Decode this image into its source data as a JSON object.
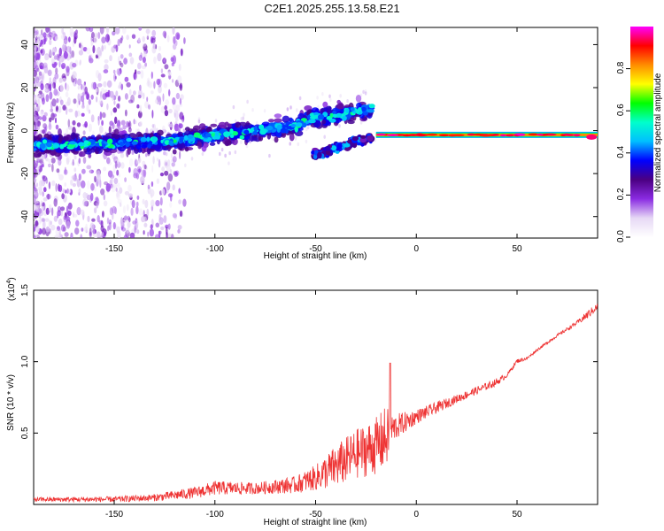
{
  "page": {
    "title": "C2E1.2025.255.13.58.E21"
  },
  "chart_data": [
    {
      "type": "heatmap",
      "title": "C2E1.2025.255.13.58.E21",
      "xlabel": "Height of straight line (km)",
      "ylabel": "Frequency (Hz)",
      "xlim": [
        -190,
        90
      ],
      "ylim": [
        -50,
        48
      ],
      "x_ticks": [
        -150,
        -100,
        -50,
        0,
        50
      ],
      "y_ticks": [
        -40,
        -20,
        0,
        20,
        40
      ],
      "x_tick_labels": [
        "-150",
        "-100",
        "-50",
        "0",
        "50"
      ],
      "y_tick_labels": [
        "-40",
        "-20",
        "0",
        "20",
        "40"
      ],
      "colorbar": {
        "label": "Normalized spectral amplitude",
        "range": [
          0.0,
          1.0
        ],
        "ticks": [
          0.0,
          0.2,
          0.4,
          0.6,
          0.8
        ],
        "tick_labels": [
          "0.0",
          "0.2",
          "0.4",
          "0.6",
          "0.8"
        ],
        "colormap": [
          "#ffffff",
          "#e6d8f5",
          "#8a2be2",
          "#4b0082",
          "#0000ff",
          "#00bfff",
          "#00ffcc",
          "#00ff00",
          "#ffff00",
          "#ff8c00",
          "#ff0000",
          "#ff00ff"
        ]
      },
      "ridge": {
        "description": "dominant Doppler ridge",
        "x": [
          -190,
          -150,
          -130,
          -120,
          -100,
          -80,
          -60,
          -52,
          -40,
          -30,
          -22,
          -20,
          -10,
          0,
          20,
          40,
          60,
          80,
          90
        ],
        "y": [
          -7,
          -6,
          -5,
          -5,
          -2,
          0,
          2,
          6,
          7,
          9,
          10,
          -2,
          -2,
          -2,
          -2,
          -2,
          -2,
          -2,
          -3
        ]
      },
      "secondary_ridge": {
        "x": [
          -52,
          -40,
          -30,
          -22
        ],
        "y": [
          -12,
          -8,
          -5,
          -3
        ]
      },
      "strong_band": {
        "x_range": [
          -20,
          90
        ],
        "frequency_hz": -2
      }
    },
    {
      "type": "line",
      "xlabel": "Height of straight line (km)",
      "ylabel": "SNR (10 * v/v)",
      "multiplier_label": "(x10",
      "multiplier_exponent": "4",
      "xlim": [
        -190,
        90
      ],
      "ylim": [
        0,
        1.5
      ],
      "x_ticks": [
        -150,
        -100,
        -50,
        0,
        50
      ],
      "y_ticks": [
        0.5,
        1.0,
        1.5
      ],
      "x_tick_labels": [
        "-150",
        "-100",
        "-50",
        "0",
        "50"
      ],
      "y_tick_labels": [
        "0.5",
        "1.0",
        "1.5"
      ],
      "color": "#ee3333",
      "series": [
        {
          "name": "SNR",
          "envelope_x": [
            -190,
            -150,
            -130,
            -110,
            -100,
            -80,
            -60,
            -50,
            -40,
            -30,
            -20,
            -15,
            -12,
            0,
            20,
            40,
            45,
            50,
            55,
            60,
            70,
            80,
            85,
            90
          ],
          "envelope_base": [
            0.03,
            0.03,
            0.04,
            0.07,
            0.1,
            0.1,
            0.12,
            0.16,
            0.22,
            0.3,
            0.35,
            0.4,
            0.5,
            0.6,
            0.73,
            0.85,
            0.9,
            1.0,
            1.02,
            1.08,
            1.18,
            1.27,
            1.32,
            1.38
          ],
          "envelope_noise": [
            0.03,
            0.04,
            0.05,
            0.08,
            0.1,
            0.08,
            0.12,
            0.18,
            0.3,
            0.35,
            0.4,
            0.45,
            0.2,
            0.1,
            0.06,
            0.05,
            0.03,
            0.03,
            0.02,
            0.02,
            0.02,
            0.03,
            0.06,
            0.05
          ],
          "peak": {
            "x": -13,
            "y": 0.99
          }
        }
      ]
    }
  ]
}
